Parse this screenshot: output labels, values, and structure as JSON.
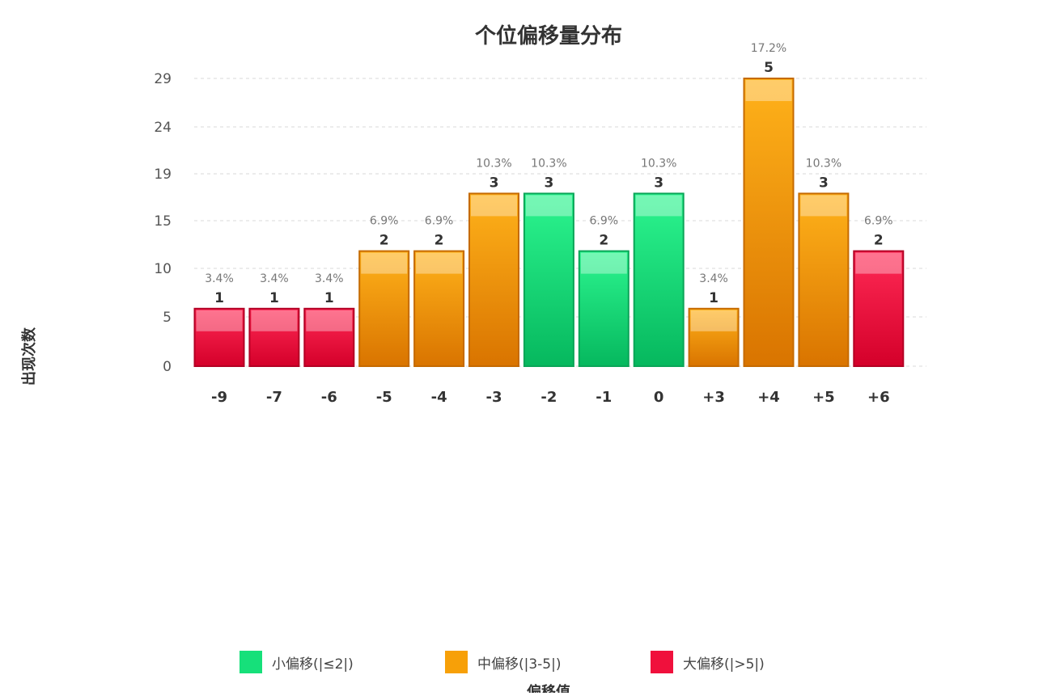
{
  "colors": {
    "small": "#16e07a",
    "medium": "#f7a008",
    "large": "#f0103c"
  },
  "chart_data": {
    "type": "bar",
    "title": "个位偏移量分布",
    "xlabel": "偏移值",
    "ylabel": "出现次数",
    "yticks": [
      0,
      5,
      10,
      15,
      19,
      24,
      29
    ],
    "ylim": [
      0,
      29
    ],
    "categories": [
      "-9",
      "-7",
      "-6",
      "-5",
      "-4",
      "-3",
      "-2",
      "-1",
      "0",
      "+3",
      "+4",
      "+5",
      "+6"
    ],
    "counts": [
      1,
      1,
      1,
      2,
      2,
      3,
      3,
      2,
      3,
      1,
      5,
      3,
      2
    ],
    "percents": [
      "3.4%",
      "3.4%",
      "3.4%",
      "6.9%",
      "6.9%",
      "10.3%",
      "10.3%",
      "6.9%",
      "10.3%",
      "3.4%",
      "17.2%",
      "10.3%",
      "6.9%"
    ],
    "groups": [
      "large",
      "large",
      "large",
      "medium",
      "medium",
      "medium",
      "small",
      "small",
      "small",
      "medium",
      "medium",
      "medium",
      "large"
    ],
    "legend": [
      {
        "key": "small",
        "label": "小偏移(|≤2|)"
      },
      {
        "key": "medium",
        "label": "中偏移(|3-5|)"
      },
      {
        "key": "large",
        "label": "大偏移(|>5|)"
      }
    ],
    "legend_position": "bottom",
    "grid": true
  }
}
